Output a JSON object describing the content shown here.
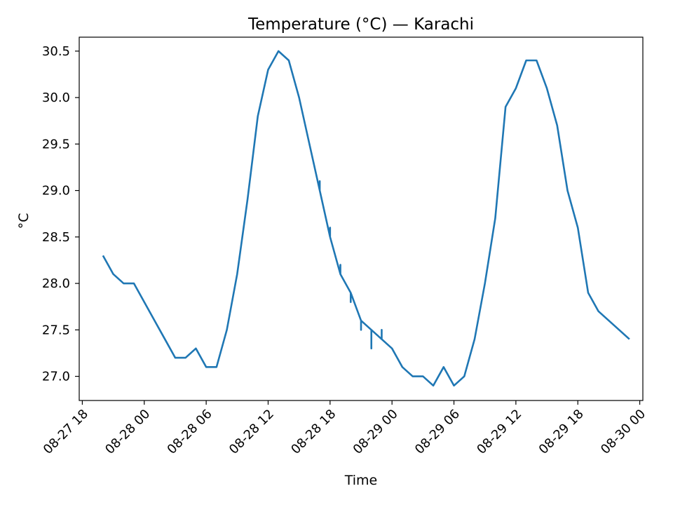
{
  "chart_data": {
    "type": "line",
    "title": "Temperature (°C) — Karachi",
    "xlabel": "Time",
    "ylabel": "°C",
    "color": "#1f77b4",
    "grid": false,
    "legend": "none",
    "x_unit": "hours since 08-27 18:00",
    "xlim": [
      -0.3,
      54.3
    ],
    "ylim": [
      26.74,
      30.65
    ],
    "x_ticks": [
      {
        "x": 0,
        "label": "08-27 18"
      },
      {
        "x": 6,
        "label": "08-28 00"
      },
      {
        "x": 12,
        "label": "08-28 06"
      },
      {
        "x": 18,
        "label": "08-28 12"
      },
      {
        "x": 24,
        "label": "08-28 18"
      },
      {
        "x": 30,
        "label": "08-29 00"
      },
      {
        "x": 36,
        "label": "08-29 06"
      },
      {
        "x": 42,
        "label": "08-29 12"
      },
      {
        "x": 48,
        "label": "08-29 18"
      },
      {
        "x": 54,
        "label": "08-30 00"
      }
    ],
    "y_ticks": [
      {
        "y": 27.0,
        "label": "27.0"
      },
      {
        "y": 27.5,
        "label": "27.5"
      },
      {
        "y": 28.0,
        "label": "28.0"
      },
      {
        "y": 28.5,
        "label": "28.5"
      },
      {
        "y": 29.0,
        "label": "29.0"
      },
      {
        "y": 29.5,
        "label": "29.5"
      },
      {
        "y": 30.0,
        "label": "30.0"
      },
      {
        "y": 30.5,
        "label": "30.5"
      }
    ],
    "series": [
      {
        "name": "Temperature",
        "points": [
          [
            2,
            28.3
          ],
          [
            3,
            28.1
          ],
          [
            4,
            28.0
          ],
          [
            5,
            28.0
          ],
          [
            6,
            27.8
          ],
          [
            7,
            27.6
          ],
          [
            8,
            27.4
          ],
          [
            9,
            27.2
          ],
          [
            10,
            27.2
          ],
          [
            11,
            27.3
          ],
          [
            12,
            27.1
          ],
          [
            13,
            27.1
          ],
          [
            14,
            27.5
          ],
          [
            15,
            28.1
          ],
          [
            16,
            28.9
          ],
          [
            17,
            29.8
          ],
          [
            18,
            30.3
          ],
          [
            19,
            30.5
          ],
          [
            20,
            30.4
          ],
          [
            21,
            30.0
          ],
          [
            22,
            29.5
          ],
          [
            23,
            29.0
          ],
          [
            23.0,
            29.1
          ],
          [
            23.0,
            29.0
          ],
          [
            24,
            28.5
          ],
          [
            24.0,
            28.6
          ],
          [
            24.0,
            28.5
          ],
          [
            25,
            28.1
          ],
          [
            25.0,
            28.2
          ],
          [
            25.0,
            28.1
          ],
          [
            26,
            27.9
          ],
          [
            26.0,
            27.8
          ],
          [
            26.0,
            27.9
          ],
          [
            27,
            27.6
          ],
          [
            27.0,
            27.5
          ],
          [
            27.0,
            27.6
          ],
          [
            28,
            27.5
          ],
          [
            28.0,
            27.3
          ],
          [
            28.0,
            27.5
          ],
          [
            29,
            27.4
          ],
          [
            29.0,
            27.5
          ],
          [
            29.0,
            27.4
          ],
          [
            30,
            27.3
          ],
          [
            31,
            27.1
          ],
          [
            32,
            27.0
          ],
          [
            33,
            27.0
          ],
          [
            34,
            26.9
          ],
          [
            35,
            27.1
          ],
          [
            36,
            26.9
          ],
          [
            37,
            27.0
          ],
          [
            38,
            27.4
          ],
          [
            39,
            28.0
          ],
          [
            40,
            28.7
          ],
          [
            41,
            29.9
          ],
          [
            42,
            30.1
          ],
          [
            43,
            30.4
          ],
          [
            44,
            30.4
          ],
          [
            45,
            30.1
          ],
          [
            46,
            29.7
          ],
          [
            47,
            29.0
          ],
          [
            48,
            28.6
          ],
          [
            49,
            27.9
          ],
          [
            50,
            27.7
          ],
          [
            51,
            27.6
          ],
          [
            52,
            27.5
          ],
          [
            53,
            27.4
          ]
        ]
      }
    ]
  }
}
